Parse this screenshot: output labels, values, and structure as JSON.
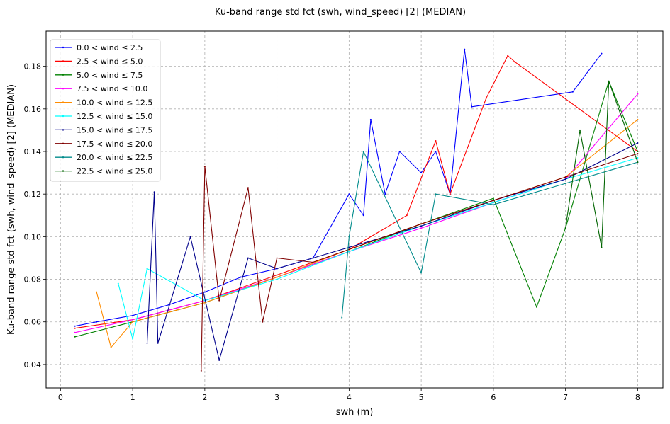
{
  "chart_data": {
    "type": "line",
    "title": "Ku-band range std fct (swh, wind_speed) [2] (MEDIAN)",
    "xlabel": "swh (m)",
    "ylabel": "Ku-band range std fct (swh, wind_speed) [2] (MEDIAN)",
    "xlim": [
      -0.2,
      8.35
    ],
    "ylim": [
      0.029,
      0.1965
    ],
    "xticks": [
      0,
      1,
      2,
      3,
      4,
      5,
      6,
      7,
      8
    ],
    "yticks": [
      0.04,
      0.06,
      0.08,
      0.1,
      0.12,
      0.14,
      0.16,
      0.18
    ],
    "xtick_labels": [
      "0",
      "1",
      "2",
      "3",
      "4",
      "5",
      "6",
      "7",
      "8"
    ],
    "ytick_labels": [
      "0.04",
      "0.06",
      "0.08",
      "0.10",
      "0.12",
      "0.14",
      "0.16",
      "0.18"
    ],
    "grid": true,
    "legend_position": "top-left",
    "series": [
      {
        "name": "0.0 < wind ≤ 2.5",
        "color": "#0000ff",
        "x": [
          0.2,
          0.5,
          1.0,
          1.5,
          2.0,
          2.5,
          3.0,
          3.5,
          4.0,
          4.2,
          4.3,
          4.5,
          4.7,
          5.0,
          5.2,
          5.4,
          5.6,
          5.7,
          7.1,
          7.5
        ],
        "y": [
          0.058,
          0.06,
          0.063,
          0.068,
          0.074,
          0.081,
          0.085,
          0.09,
          0.12,
          0.11,
          0.155,
          0.12,
          0.14,
          0.13,
          0.14,
          0.12,
          0.188,
          0.161,
          0.168,
          0.186
        ]
      },
      {
        "name": "2.5 < wind ≤ 5.0",
        "color": "#ff0000",
        "x": [
          0.2,
          1.0,
          2.0,
          3.0,
          4.0,
          4.8,
          5.2,
          5.4,
          5.9,
          6.2,
          6.3,
          8.0
        ],
        "y": [
          0.057,
          0.061,
          0.07,
          0.082,
          0.094,
          0.11,
          0.145,
          0.12,
          0.165,
          0.185,
          0.182,
          0.14
        ]
      },
      {
        "name": "5.0 < wind ≤ 7.5",
        "color": "#008000",
        "x": [
          0.2,
          1.0,
          2.0,
          3.0,
          4.0,
          5.0,
          6.0,
          6.6,
          7.0,
          7.6,
          8.0
        ],
        "y": [
          0.053,
          0.06,
          0.069,
          0.081,
          0.093,
          0.106,
          0.118,
          0.067,
          0.104,
          0.173,
          0.14
        ]
      },
      {
        "name": "7.5 < wind ≤ 10.0",
        "color": "#ff00ff",
        "x": [
          0.2,
          1.0,
          2.0,
          3.0,
          4.0,
          5.0,
          6.0,
          7.0,
          8.0
        ],
        "y": [
          0.055,
          0.061,
          0.07,
          0.081,
          0.093,
          0.104,
          0.116,
          0.127,
          0.167
        ]
      },
      {
        "name": "10.0 < wind ≤ 12.5",
        "color": "#ff8c00",
        "x": [
          0.5,
          0.7,
          1.0,
          2.0,
          3.0,
          4.0,
          5.0,
          6.0,
          7.0,
          8.0
        ],
        "y": [
          0.074,
          0.048,
          0.06,
          0.069,
          0.081,
          0.094,
          0.106,
          0.117,
          0.128,
          0.155
        ]
      },
      {
        "name": "12.5 < wind ≤ 15.0",
        "color": "#00ffff",
        "x": [
          0.8,
          1.0,
          1.2,
          2.0,
          3.0,
          4.0,
          5.0,
          6.0,
          7.0,
          8.0
        ],
        "y": [
          0.078,
          0.052,
          0.085,
          0.07,
          0.08,
          0.093,
          0.105,
          0.116,
          0.127,
          0.137
        ]
      },
      {
        "name": "15.0 < wind ≤ 17.5",
        "color": "#00008b",
        "x": [
          1.2,
          1.3,
          1.35,
          1.8,
          2.2,
          2.6,
          3.0,
          3.5,
          4.0,
          5.0,
          6.0,
          7.0,
          8.0
        ],
        "y": [
          0.05,
          0.121,
          0.05,
          0.1,
          0.042,
          0.09,
          0.085,
          0.09,
          0.095,
          0.105,
          0.117,
          0.127,
          0.144
        ]
      },
      {
        "name": "17.5 < wind ≤ 20.0",
        "color": "#800000",
        "x": [
          1.95,
          2.0,
          2.2,
          2.6,
          2.8,
          3.0,
          3.5,
          4.0,
          5.0,
          6.0,
          7.0,
          8.0
        ],
        "y": [
          0.037,
          0.133,
          0.07,
          0.123,
          0.06,
          0.09,
          0.088,
          0.094,
          0.106,
          0.117,
          0.128,
          0.139
        ]
      },
      {
        "name": "20.0 < wind ≤ 22.5",
        "color": "#008b8b",
        "x": [
          3.9,
          4.0,
          4.2,
          5.0,
          5.2,
          6.0,
          7.0,
          8.0
        ],
        "y": [
          0.062,
          0.1,
          0.14,
          0.083,
          0.12,
          0.115,
          0.125,
          0.135
        ]
      },
      {
        "name": "22.5 < wind ≤ 25.0",
        "color": "#006400",
        "x": [
          7.0,
          7.2,
          7.5,
          7.6,
          8.0
        ],
        "y": [
          0.104,
          0.15,
          0.095,
          0.173,
          0.135
        ]
      }
    ]
  }
}
